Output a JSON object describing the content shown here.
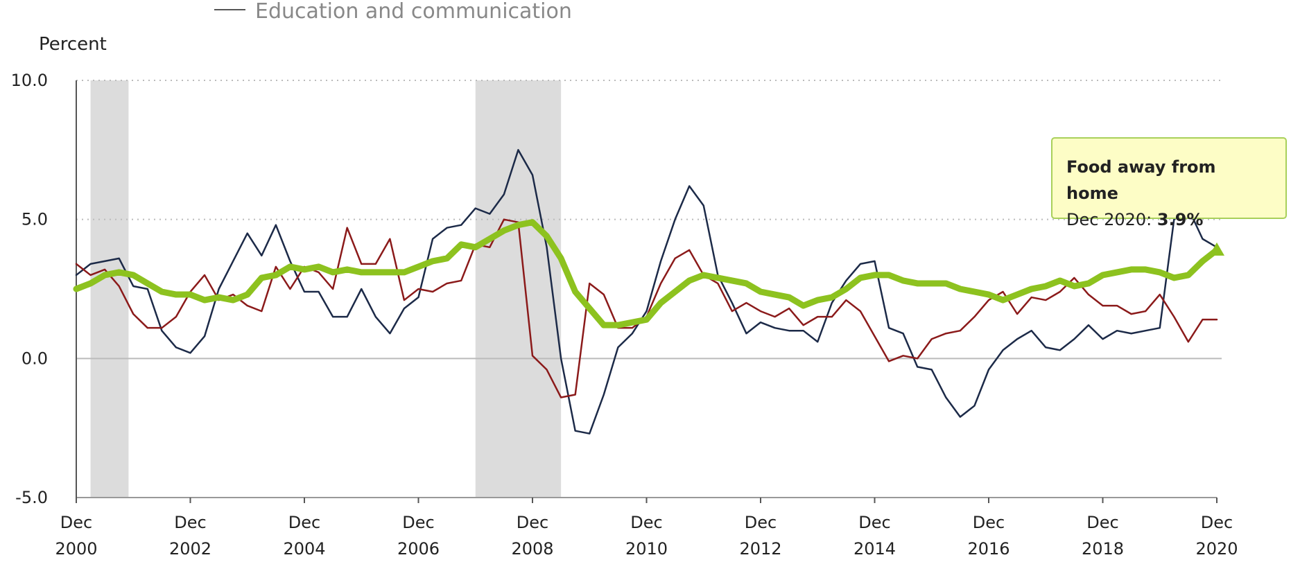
{
  "chart_data": {
    "type": "line",
    "legend": [
      "Education and communication"
    ],
    "y_label": "Percent",
    "x": [
      "2000-12",
      "2001-03",
      "2001-06",
      "2001-09",
      "2001-12",
      "2002-03",
      "2002-06",
      "2002-09",
      "2002-12",
      "2003-03",
      "2003-06",
      "2003-09",
      "2003-12",
      "2004-03",
      "2004-06",
      "2004-09",
      "2004-12",
      "2005-03",
      "2005-06",
      "2005-09",
      "2005-12",
      "2006-03",
      "2006-06",
      "2006-09",
      "2006-12",
      "2007-03",
      "2007-06",
      "2007-09",
      "2007-12",
      "2008-03",
      "2008-06",
      "2008-09",
      "2008-12",
      "2009-03",
      "2009-06",
      "2009-09",
      "2009-12",
      "2010-03",
      "2010-06",
      "2010-09",
      "2010-12",
      "2011-03",
      "2011-06",
      "2011-09",
      "2011-12",
      "2012-03",
      "2012-06",
      "2012-09",
      "2012-12",
      "2013-03",
      "2013-06",
      "2013-09",
      "2013-12",
      "2014-03",
      "2014-06",
      "2014-09",
      "2014-12",
      "2015-03",
      "2015-06",
      "2015-09",
      "2015-12",
      "2016-03",
      "2016-06",
      "2016-09",
      "2016-12",
      "2017-03",
      "2017-06",
      "2017-09",
      "2017-12",
      "2018-03",
      "2018-06",
      "2018-09",
      "2018-12",
      "2019-03",
      "2019-06",
      "2019-09",
      "2019-12",
      "2020-03",
      "2020-06",
      "2020-09",
      "2020-12"
    ],
    "series": [
      {
        "color": "#1c2a48",
        "values": [
          3.0,
          3.4,
          3.5,
          3.6,
          2.6,
          2.5,
          1.0,
          0.4,
          0.2,
          0.8,
          2.5,
          3.5,
          4.5,
          3.7,
          4.8,
          3.5,
          2.4,
          2.4,
          1.5,
          1.5,
          2.5,
          1.5,
          0.9,
          1.8,
          2.2,
          4.3,
          4.7,
          4.8,
          5.4,
          5.2,
          5.9,
          7.5,
          6.6,
          4.0,
          0.0,
          -2.6,
          -2.7,
          -1.3,
          0.4,
          0.9,
          1.7,
          3.5,
          5.0,
          6.2,
          5.5,
          3.0,
          2.0,
          0.9,
          1.3,
          1.1,
          1.0,
          1.0,
          0.6,
          2.0,
          2.8,
          3.4,
          3.5,
          1.1,
          0.9,
          -0.3,
          -0.4,
          -1.4,
          -2.1,
          -1.7,
          -0.4,
          0.3,
          0.7,
          1.0,
          0.4,
          0.3,
          0.7,
          1.2,
          0.7,
          1.0,
          0.9,
          1.0,
          1.1,
          5.0,
          5.4,
          4.3,
          4.0
        ]
      },
      {
        "color": "#8b1a1a",
        "values": [
          3.4,
          3.0,
          3.2,
          2.6,
          1.6,
          1.1,
          1.1,
          1.5,
          2.4,
          3.0,
          2.1,
          2.3,
          1.9,
          1.7,
          3.3,
          2.5,
          3.3,
          3.1,
          2.5,
          4.7,
          3.4,
          3.4,
          4.3,
          2.1,
          2.5,
          2.4,
          2.7,
          2.8,
          4.1,
          4.0,
          5.0,
          4.9,
          0.1,
          -0.4,
          -1.4,
          -1.3,
          2.7,
          2.3,
          1.1,
          1.1,
          1.5,
          2.7,
          3.6,
          3.9,
          3.0,
          2.7,
          1.7,
          2.0,
          1.7,
          1.5,
          1.8,
          1.2,
          1.5,
          1.5,
          2.1,
          1.7,
          0.8,
          -0.1,
          0.1,
          0.0,
          0.7,
          0.9,
          1.0,
          1.5,
          2.1,
          2.4,
          1.6,
          2.2,
          2.1,
          2.4,
          2.9,
          2.3,
          1.9,
          1.9,
          1.6,
          1.7,
          2.3,
          1.5,
          0.6,
          1.4,
          1.4
        ]
      },
      {
        "name": "Food away from home",
        "color": "#8dc21f",
        "values": [
          2.5,
          2.7,
          3.0,
          3.1,
          3.0,
          2.7,
          2.4,
          2.3,
          2.3,
          2.1,
          2.2,
          2.1,
          2.3,
          2.9,
          3.0,
          3.3,
          3.2,
          3.3,
          3.1,
          3.2,
          3.1,
          3.1,
          3.1,
          3.1,
          3.3,
          3.5,
          3.6,
          4.1,
          4.0,
          4.3,
          4.6,
          4.8,
          4.9,
          4.4,
          3.6,
          2.4,
          1.8,
          1.2,
          1.2,
          1.3,
          1.4,
          2.0,
          2.4,
          2.8,
          3.0,
          2.9,
          2.8,
          2.7,
          2.4,
          2.3,
          2.2,
          1.9,
          2.1,
          2.2,
          2.5,
          2.9,
          3.0,
          3.0,
          2.8,
          2.7,
          2.7,
          2.7,
          2.5,
          2.4,
          2.3,
          2.1,
          2.3,
          2.5,
          2.6,
          2.8,
          2.6,
          2.7,
          3.0,
          3.1,
          3.2,
          3.2,
          3.1,
          2.9,
          3.0,
          3.5,
          3.9
        ]
      }
    ],
    "shaded_ranges": [
      [
        "2001-03",
        "2001-11"
      ],
      [
        "2007-12",
        "2009-06"
      ]
    ],
    "xlim": [
      "2000-12",
      "2020-12"
    ],
    "xticks": [
      {
        "value": "2000-12",
        "label": "Dec 2000"
      },
      {
        "value": "2002-12",
        "label": "Dec 2002"
      },
      {
        "value": "2004-12",
        "label": "Dec 2004"
      },
      {
        "value": "2006-12",
        "label": "Dec 2006"
      },
      {
        "value": "2008-12",
        "label": "Dec 2008"
      },
      {
        "value": "2010-12",
        "label": "Dec 2010"
      },
      {
        "value": "2012-12",
        "label": "Dec 2012"
      },
      {
        "value": "2014-12",
        "label": "Dec 2014"
      },
      {
        "value": "2016-12",
        "label": "Dec 2016"
      },
      {
        "value": "2018-12",
        "label": "Dec 2018"
      },
      {
        "value": "2020-12",
        "label": "Dec 2020"
      }
    ],
    "ylim": [
      -5,
      10
    ],
    "yticks": [
      {
        "value": -5,
        "label": "-5.0"
      },
      {
        "value": 0,
        "label": "0.0"
      },
      {
        "value": 5,
        "label": "5.0"
      },
      {
        "value": 10,
        "label": "10.0"
      }
    ],
    "grid": true,
    "tooltip": {
      "date": "Dec 2020",
      "value": 3.9,
      "value_label": "3.9%"
    }
  }
}
